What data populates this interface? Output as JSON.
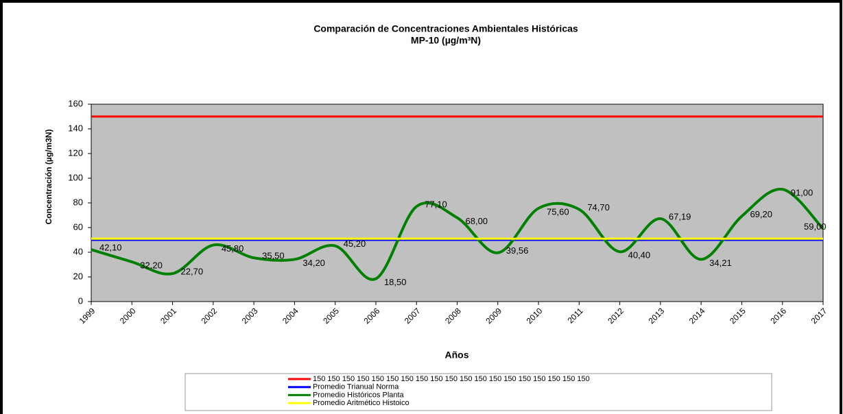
{
  "chart_data": {
    "type": "line",
    "title": "Comparación de Concentraciones Ambientales Históricas",
    "subtitle": "MP-10 (µg/m³N)",
    "y_label": "Concentración (µg/m3N)",
    "x_label": "Años",
    "categories": [
      "1999",
      "2000",
      "2001",
      "2002",
      "2003",
      "2004",
      "2005",
      "2006",
      "2007",
      "2008",
      "2009",
      "2010",
      "2011",
      "2012",
      "2013",
      "2014",
      "2015",
      "2016",
      "2017"
    ],
    "ylim": [
      0,
      160
    ],
    "yticks": [
      0,
      20,
      40,
      60,
      80,
      100,
      120,
      140,
      160
    ],
    "series": [
      {
        "name": "150 150 150 150 150 150 150 150 150 150 150 150 150 150 150 150 150 150 150",
        "color": "#ff0000",
        "values": [
          150,
          150,
          150,
          150,
          150,
          150,
          150,
          150,
          150,
          150,
          150,
          150,
          150,
          150,
          150,
          150,
          150,
          150,
          150
        ]
      },
      {
        "name": "Promedio Trianual Norma",
        "color": "#0000ff",
        "values": [
          50,
          50,
          50,
          50,
          50,
          50,
          50,
          50,
          50,
          50,
          50,
          50,
          50,
          50,
          50,
          50,
          50,
          50,
          50
        ]
      },
      {
        "name": "Promedio Históricos Planta",
        "color": "#008000",
        "smooth": true,
        "values": [
          42.1,
          32.2,
          22.7,
          45.8,
          35.5,
          34.2,
          45.2,
          18.5,
          77.1,
          68.0,
          39.56,
          75.6,
          74.7,
          40.4,
          67.19,
          34.21,
          69.2,
          91.0,
          59.0
        ],
        "value_labels": [
          "42,10",
          "32,20",
          "22,70",
          "45,80",
          "35,50",
          "34,20",
          "45,20",
          "18,50",
          "77,10",
          "68,00",
          "39,56",
          "75,60",
          "74,70",
          "40,40",
          "67,19",
          "34,21",
          "69,20",
          "91,00",
          "59,00"
        ]
      },
      {
        "name": "Promedio Aritmético Histoico",
        "color": "#ffff00",
        "values": [
          51,
          51,
          51,
          51,
          51,
          51,
          51,
          51,
          51,
          51,
          51,
          51,
          51,
          51,
          51,
          51,
          51,
          51,
          51
        ]
      }
    ]
  }
}
